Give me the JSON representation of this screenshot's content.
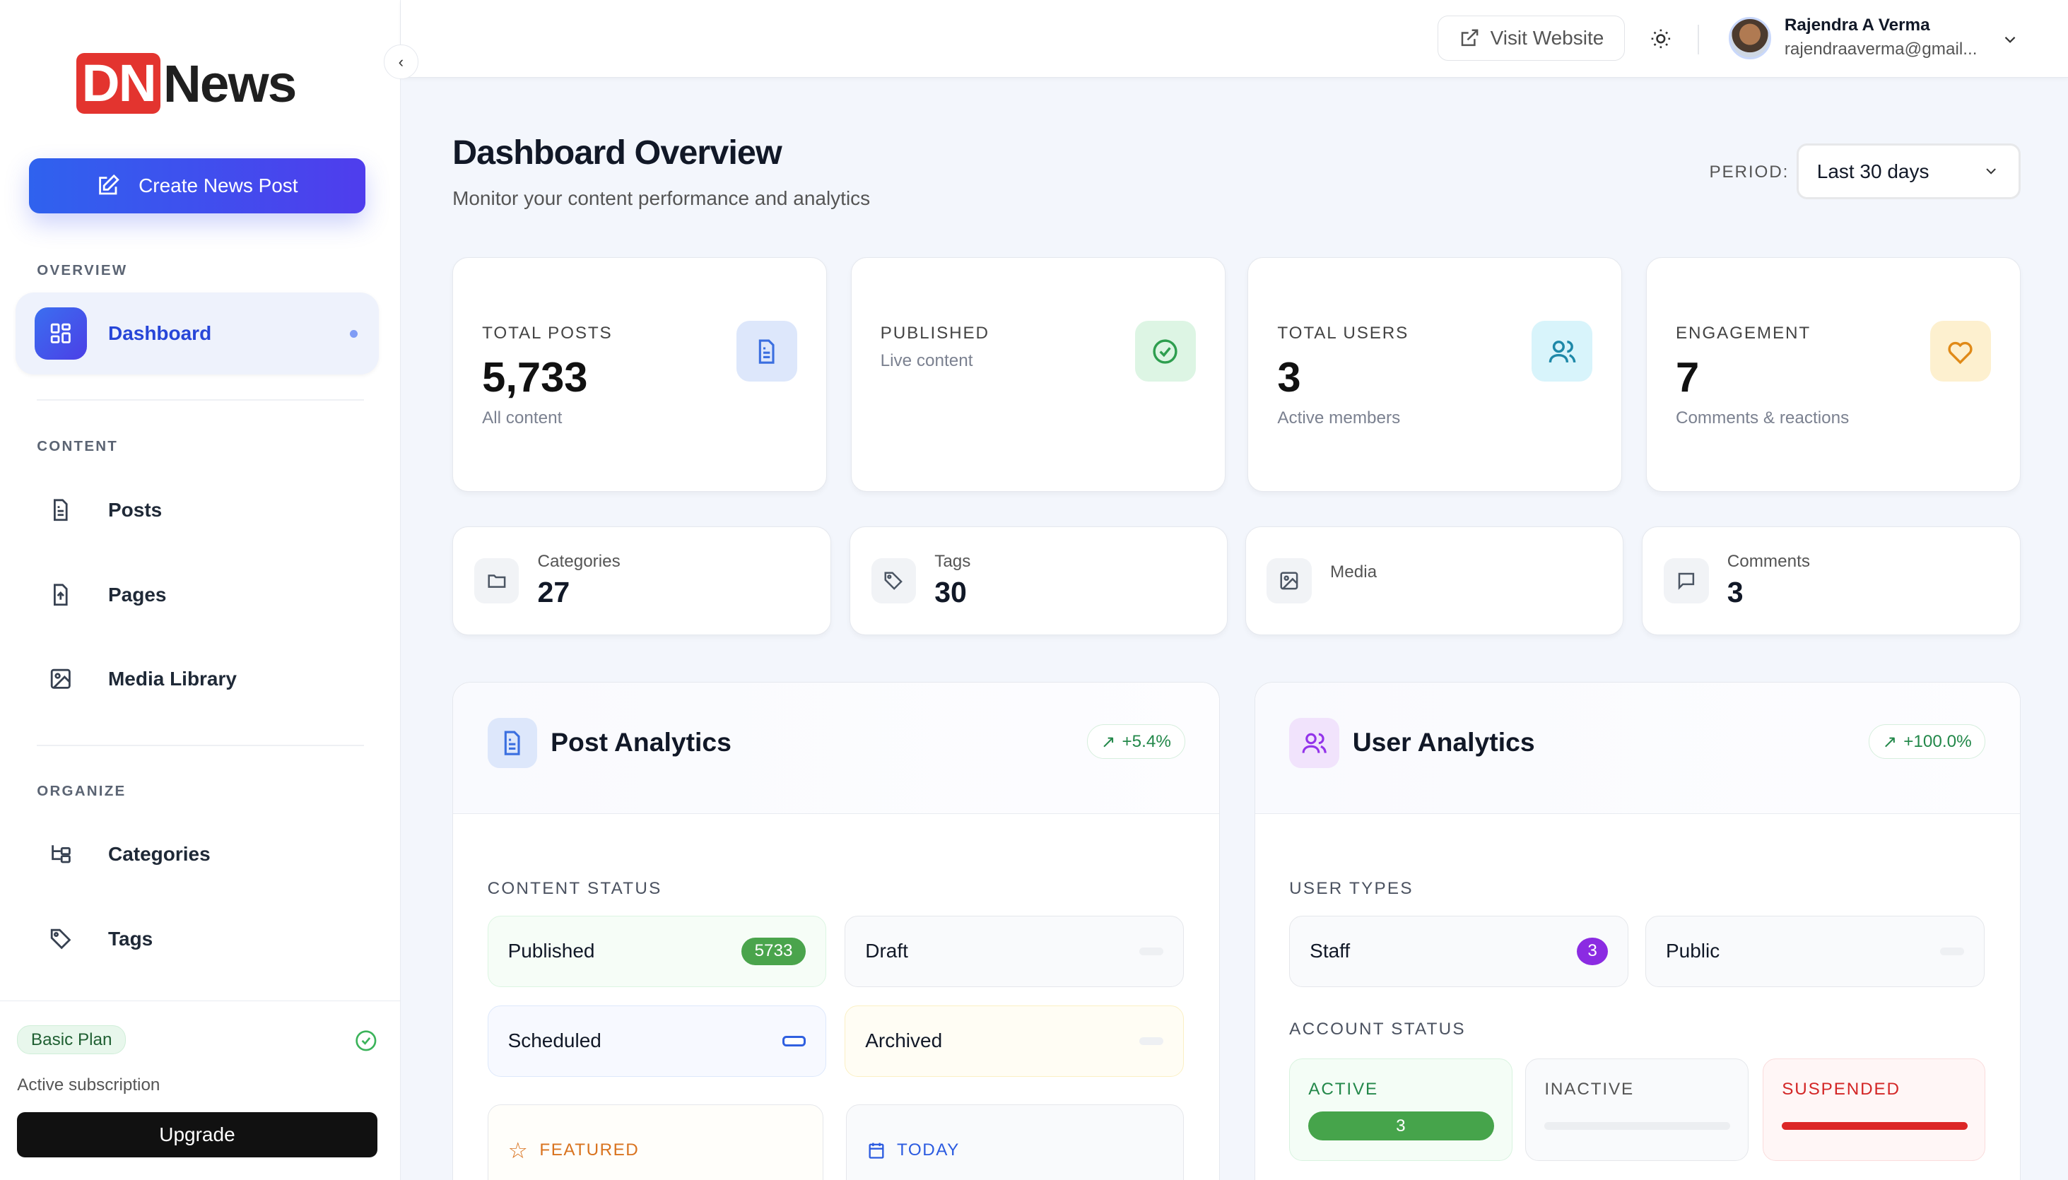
{
  "brand": {
    "logo_text": "DNNews",
    "logo_red": "DN",
    "logo_dark": "News",
    "accent": "#3b5bf0"
  },
  "sidebar": {
    "create_label": "Create News Post",
    "sections": [
      "OVERVIEW",
      "CONTENT",
      "ORGANIZE"
    ],
    "items": [
      {
        "label": "Dashboard",
        "icon": "grid-icon",
        "active": true
      },
      {
        "label": "Posts",
        "icon": "file-text-icon"
      },
      {
        "label": "Pages",
        "icon": "file-icon"
      },
      {
        "label": "Media Library",
        "icon": "image-icon"
      },
      {
        "label": "Categories",
        "icon": "tree-icon"
      },
      {
        "label": "Tags",
        "icon": "tag-icon"
      }
    ],
    "plan": {
      "badge": "Basic Plan",
      "status": "Active subscription",
      "upgrade": "Upgrade"
    }
  },
  "topbar": {
    "visit": "Visit Website",
    "user_name": "Rajendra A Verma",
    "user_email": "rajendraaverma@gmail..."
  },
  "page": {
    "title": "Dashboard Overview",
    "subtitle": "Monitor your content performance and analytics",
    "period_label": "PERIOD:",
    "period_value": "Last 30 days"
  },
  "stats": [
    {
      "label": "TOTAL POSTS",
      "value": "5,733",
      "sub": "All content",
      "color": "#3b6fe0",
      "bg": "#dde7fb"
    },
    {
      "label": "PUBLISHED",
      "value": "",
      "sub": "Live content",
      "color": "#2e9e4f",
      "bg": "#ddf5e4"
    },
    {
      "label": "TOTAL USERS",
      "value": "3",
      "sub": "Active members",
      "color": "#1e88a8",
      "bg": "#d8f4fb"
    },
    {
      "label": "ENGAGEMENT",
      "value": "7",
      "sub": "Comments & reactions",
      "color": "#e08a18",
      "bg": "#fdf0cf"
    }
  ],
  "mini": [
    {
      "label": "Categories",
      "value": "27"
    },
    {
      "label": "Tags",
      "value": "30"
    },
    {
      "label": "Media",
      "value": ""
    },
    {
      "label": "Comments",
      "value": "3"
    }
  ],
  "post_analytics": {
    "title": "Post Analytics",
    "trend": "+5.4%",
    "section": "CONTENT STATUS",
    "statuses": [
      {
        "label": "Published",
        "count": "5733"
      },
      {
        "label": "Draft"
      },
      {
        "label": "Scheduled"
      },
      {
        "label": "Archived"
      }
    ],
    "featured": "FEATURED",
    "today": "TODAY"
  },
  "user_analytics": {
    "title": "User Analytics",
    "trend": "+100.0%",
    "section": "USER TYPES",
    "types": [
      {
        "label": "Staff",
        "count": "3"
      },
      {
        "label": "Public"
      }
    ],
    "account_section": "ACCOUNT STATUS",
    "account": [
      {
        "label": "ACTIVE",
        "count": "3"
      },
      {
        "label": "INACTIVE"
      },
      {
        "label": "SUSPENDED"
      }
    ]
  }
}
